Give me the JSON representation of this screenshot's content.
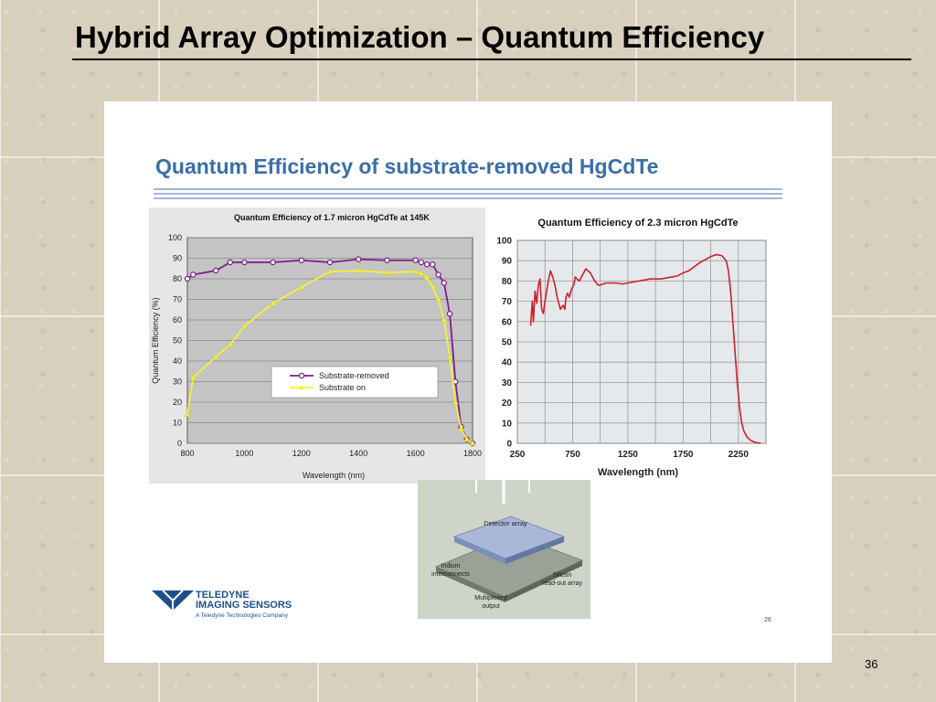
{
  "slide": {
    "title": "Hybrid Array Optimization – Quantum Efficiency",
    "number": "36"
  },
  "panel": {
    "heading": "Quantum Efficiency of substrate-removed HgCdTe",
    "inner_page_number": "26",
    "logo": {
      "name": "TELEDYNE",
      "subtitle": "IMAGING SENSORS",
      "tagline": "A Teledyne Technologies Company"
    }
  },
  "detector_diagram": {
    "labels": {
      "detector_array": "Detector array",
      "indium": "Indium",
      "interconnects": "interconnects",
      "silicon": "Silicon",
      "readout": "read-out array",
      "multiplexed": "Multiplexed",
      "output": "output"
    }
  },
  "colors": {
    "title_blue": "#3a6ea8",
    "plot_gray": "#c0c0c0",
    "substrate_removed": "#7b1d8a",
    "substrate_on": "#f2f23c",
    "line_red": "#d0202a",
    "logo_blue": "#1d4f8f"
  },
  "chart_data": [
    {
      "type": "line",
      "title": "Quantum Efficiency of 1.7 micron HgCdTe at 145K",
      "xlabel": "Wavelength (nm)",
      "ylabel": "Quantum Efficiency (%)",
      "xlim": [
        800,
        1800
      ],
      "ylim": [
        0,
        100
      ],
      "xticks": [
        "800",
        "1000",
        "1200",
        "1400",
        "1600",
        "1800"
      ],
      "yticks": [
        "0",
        "10",
        "20",
        "30",
        "40",
        "50",
        "60",
        "70",
        "80",
        "90",
        "100"
      ],
      "grid": true,
      "legend": "center-right",
      "series": [
        {
          "name": "Substrate-removed",
          "color": "#7b1d8a",
          "marker": "circle",
          "points": [
            [
              800,
              80
            ],
            [
              820,
              82
            ],
            [
              900,
              84
            ],
            [
              950,
              88
            ],
            [
              1000,
              88
            ],
            [
              1100,
              88
            ],
            [
              1200,
              89
            ],
            [
              1300,
              88
            ],
            [
              1400,
              89.5
            ],
            [
              1500,
              89
            ],
            [
              1600,
              89
            ],
            [
              1620,
              88
            ],
            [
              1640,
              87
            ],
            [
              1660,
              87
            ],
            [
              1680,
              82
            ],
            [
              1700,
              78
            ],
            [
              1720,
              63
            ],
            [
              1740,
              30
            ],
            [
              1760,
              8
            ],
            [
              1780,
              2
            ],
            [
              1800,
              0
            ]
          ]
        },
        {
          "name": "Substrate on",
          "color": "#f2f23c",
          "marker": "triangle",
          "points": [
            [
              800,
              14
            ],
            [
              820,
              32
            ],
            [
              900,
              42
            ],
            [
              950,
              48
            ],
            [
              1000,
              57
            ],
            [
              1100,
              68
            ],
            [
              1200,
              76
            ],
            [
              1300,
              83.5
            ],
            [
              1400,
              84
            ],
            [
              1500,
              83
            ],
            [
              1600,
              83.5
            ],
            [
              1620,
              82.5
            ],
            [
              1640,
              80.5
            ],
            [
              1660,
              76
            ],
            [
              1680,
              70
            ],
            [
              1700,
              60
            ],
            [
              1720,
              42
            ],
            [
              1740,
              20
            ],
            [
              1760,
              7
            ],
            [
              1780,
              2
            ],
            [
              1800,
              0
            ]
          ]
        }
      ]
    },
    {
      "type": "line",
      "title": "Quantum Efficiency of 2.3 micron HgCdTe",
      "xlabel": "Wavelength (nm)",
      "ylabel": "",
      "xlim": [
        250,
        2500
      ],
      "ylim": [
        0,
        100
      ],
      "xticks": [
        "250",
        "750",
        "1250",
        "1750",
        "2250"
      ],
      "yticks": [
        "0",
        "10",
        "20",
        "30",
        "40",
        "50",
        "60",
        "70",
        "80",
        "90",
        "100"
      ],
      "grid": true,
      "series": [
        {
          "color": "#d0202a",
          "points": [
            [
              370,
              58
            ],
            [
              385,
              70
            ],
            [
              395,
              60
            ],
            [
              410,
              75
            ],
            [
              425,
              69
            ],
            [
              440,
              78
            ],
            [
              455,
              81
            ],
            [
              470,
              66
            ],
            [
              485,
              64
            ],
            [
              500,
              70
            ],
            [
              515,
              75
            ],
            [
              530,
              80
            ],
            [
              550,
              85
            ],
            [
              570,
              82
            ],
            [
              590,
              78
            ],
            [
              610,
              72
            ],
            [
              625,
              69
            ],
            [
              640,
              66
            ],
            [
              650,
              67
            ],
            [
              665,
              68
            ],
            [
              680,
              66
            ],
            [
              690,
              72
            ],
            [
              705,
              74
            ],
            [
              720,
              72
            ],
            [
              740,
              76
            ],
            [
              760,
              78
            ],
            [
              775,
              82
            ],
            [
              790,
              81
            ],
            [
              810,
              80
            ],
            [
              830,
              82
            ],
            [
              850,
              84
            ],
            [
              870,
              86
            ],
            [
              890,
              85
            ],
            [
              910,
              84
            ],
            [
              930,
              82
            ],
            [
              950,
              80
            ],
            [
              980,
              78
            ],
            [
              1000,
              78
            ],
            [
              1050,
              79
            ],
            [
              1100,
              79
            ],
            [
              1150,
              79
            ],
            [
              1200,
              78.5
            ],
            [
              1250,
              79
            ],
            [
              1300,
              79.5
            ],
            [
              1350,
              80
            ],
            [
              1400,
              80.5
            ],
            [
              1450,
              81
            ],
            [
              1500,
              81
            ],
            [
              1550,
              81
            ],
            [
              1600,
              81.5
            ],
            [
              1650,
              82
            ],
            [
              1700,
              82.5
            ],
            [
              1750,
              84
            ],
            [
              1800,
              85
            ],
            [
              1850,
              87
            ],
            [
              1900,
              89
            ],
            [
              1950,
              90.5
            ],
            [
              2000,
              92
            ],
            [
              2050,
              93
            ],
            [
              2100,
              92.5
            ],
            [
              2140,
              90
            ],
            [
              2160,
              85
            ],
            [
              2180,
              75
            ],
            [
              2200,
              60
            ],
            [
              2220,
              45
            ],
            [
              2240,
              30
            ],
            [
              2260,
              18
            ],
            [
              2280,
              10
            ],
            [
              2300,
              6
            ],
            [
              2330,
              3
            ],
            [
              2360,
              1.5
            ],
            [
              2400,
              0.5
            ],
            [
              2450,
              0
            ]
          ]
        }
      ]
    }
  ]
}
